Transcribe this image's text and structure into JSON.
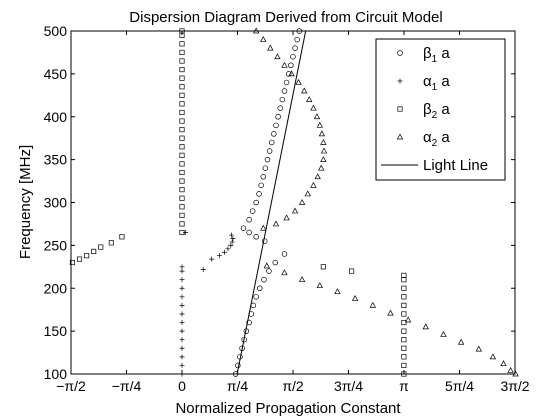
{
  "chart_data": {
    "type": "scatter",
    "title": "Dispersion Diagram Derived from Circuit Model",
    "xlabel": "Normalized Propagation Constant",
    "ylabel": "Frequency [MHz]",
    "xlim": [
      -1.5708,
      4.7124
    ],
    "ylim": [
      100,
      500
    ],
    "grid": false,
    "legend_position": "top-right",
    "x_ticks": [
      {
        "value": -1.5708,
        "label": "−π/2"
      },
      {
        "value": -0.7854,
        "label": "−π/4"
      },
      {
        "value": 0,
        "label": "0"
      },
      {
        "value": 0.7854,
        "label": "π/4"
      },
      {
        "value": 1.5708,
        "label": "π/2"
      },
      {
        "value": 2.3562,
        "label": "3π/4"
      },
      {
        "value": 3.1416,
        "label": "π"
      },
      {
        "value": 3.927,
        "label": "5π/4"
      },
      {
        "value": 4.7124,
        "label": "3π/2"
      }
    ],
    "y_ticks": [
      100,
      150,
      200,
      250,
      300,
      350,
      400,
      450,
      500
    ],
    "series": [
      {
        "name": "β1 a",
        "marker": "circle",
        "points": [
          [
            0.76,
            100
          ],
          [
            0.79,
            110
          ],
          [
            0.82,
            120
          ],
          [
            0.85,
            130
          ],
          [
            0.88,
            140
          ],
          [
            0.91,
            150
          ],
          [
            0.95,
            160
          ],
          [
            0.98,
            170
          ],
          [
            1.01,
            180
          ],
          [
            1.05,
            190
          ],
          [
            1.1,
            200
          ],
          [
            1.16,
            210
          ],
          [
            1.23,
            220
          ],
          [
            1.32,
            230
          ],
          [
            1.45,
            240
          ],
          [
            1.17,
            255
          ],
          [
            1.05,
            260
          ],
          [
            0.95,
            265
          ],
          [
            0.87,
            270
          ],
          [
            0.95,
            280
          ],
          [
            1.0,
            290
          ],
          [
            1.05,
            300
          ],
          [
            1.09,
            310
          ],
          [
            1.12,
            320
          ],
          [
            1.15,
            330
          ],
          [
            1.18,
            340
          ],
          [
            1.21,
            350
          ],
          [
            1.24,
            360
          ],
          [
            1.27,
            370
          ],
          [
            1.3,
            380
          ],
          [
            1.33,
            390
          ],
          [
            1.36,
            400
          ],
          [
            1.39,
            410
          ],
          [
            1.42,
            420
          ],
          [
            1.45,
            430
          ],
          [
            1.48,
            440
          ],
          [
            1.51,
            450
          ],
          [
            1.54,
            460
          ],
          [
            1.57,
            470
          ],
          [
            1.6,
            480
          ],
          [
            1.63,
            490
          ],
          [
            1.66,
            500
          ]
        ]
      },
      {
        "name": "α1 a",
        "marker": "plus",
        "points": [
          [
            0,
            100
          ],
          [
            0,
            110
          ],
          [
            0,
            120
          ],
          [
            0,
            130
          ],
          [
            0,
            140
          ],
          [
            0,
            150
          ],
          [
            0,
            160
          ],
          [
            0,
            170
          ],
          [
            0,
            180
          ],
          [
            0,
            190
          ],
          [
            0,
            200
          ],
          [
            0,
            210
          ],
          [
            0,
            220
          ],
          [
            0,
            225
          ],
          [
            0.3,
            222
          ],
          [
            0.42,
            234
          ],
          [
            0.53,
            238
          ],
          [
            0.6,
            242
          ],
          [
            0.65,
            246
          ],
          [
            0.69,
            250
          ],
          [
            0.71,
            254
          ],
          [
            0.72,
            258
          ],
          [
            0.7,
            262
          ],
          [
            0.05,
            265
          ]
        ]
      },
      {
        "name": "β2 a",
        "marker": "square",
        "points": [
          [
            -1.55,
            230
          ],
          [
            -1.45,
            234
          ],
          [
            -1.35,
            238
          ],
          [
            -1.25,
            243
          ],
          [
            -1.15,
            248
          ],
          [
            -1.0,
            253
          ],
          [
            -0.85,
            260
          ],
          [
            0,
            265
          ],
          [
            0,
            275
          ],
          [
            0,
            285
          ],
          [
            0,
            295
          ],
          [
            0,
            305
          ],
          [
            0,
            315
          ],
          [
            0,
            325
          ],
          [
            0,
            335
          ],
          [
            0,
            345
          ],
          [
            0,
            355
          ],
          [
            0,
            365
          ],
          [
            0,
            375
          ],
          [
            0,
            385
          ],
          [
            0,
            395
          ],
          [
            0,
            405
          ],
          [
            0,
            415
          ],
          [
            0,
            425
          ],
          [
            0,
            435
          ],
          [
            0,
            445
          ],
          [
            0,
            455
          ],
          [
            0,
            465
          ],
          [
            0,
            475
          ],
          [
            0,
            485
          ],
          [
            0,
            495
          ],
          [
            0,
            500
          ],
          [
            2.0,
            225
          ],
          [
            2.4,
            220
          ],
          [
            3.14,
            100
          ],
          [
            3.14,
            110
          ],
          [
            3.14,
            120
          ],
          [
            3.14,
            130
          ],
          [
            3.14,
            140
          ],
          [
            3.14,
            150
          ],
          [
            3.14,
            160
          ],
          [
            3.14,
            170
          ],
          [
            3.14,
            180
          ],
          [
            3.14,
            190
          ],
          [
            3.14,
            200
          ],
          [
            3.14,
            210
          ],
          [
            3.14,
            215
          ]
        ]
      },
      {
        "name": "α2 a",
        "marker": "triangle",
        "points": [
          [
            1.05,
            500
          ],
          [
            1.15,
            490
          ],
          [
            1.25,
            480
          ],
          [
            1.35,
            470
          ],
          [
            1.45,
            460
          ],
          [
            1.55,
            450
          ],
          [
            1.65,
            440
          ],
          [
            1.73,
            430
          ],
          [
            1.8,
            420
          ],
          [
            1.86,
            410
          ],
          [
            1.91,
            400
          ],
          [
            1.95,
            390
          ],
          [
            1.98,
            380
          ],
          [
            2.0,
            370
          ],
          [
            2.01,
            360
          ],
          [
            2.0,
            350
          ],
          [
            1.97,
            340
          ],
          [
            1.92,
            330
          ],
          [
            1.86,
            320
          ],
          [
            1.78,
            310
          ],
          [
            1.7,
            300
          ],
          [
            1.6,
            290
          ],
          [
            1.48,
            282
          ],
          [
            1.33,
            275
          ],
          [
            1.15,
            270
          ],
          [
            1.2,
            226
          ],
          [
            1.45,
            218
          ],
          [
            1.7,
            210
          ],
          [
            1.95,
            203
          ],
          [
            2.2,
            196
          ],
          [
            2.45,
            188
          ],
          [
            2.7,
            180
          ],
          [
            2.95,
            171
          ],
          [
            3.2,
            163
          ],
          [
            3.45,
            155
          ],
          [
            3.7,
            146
          ],
          [
            3.95,
            137
          ],
          [
            4.2,
            129
          ],
          [
            4.4,
            120
          ],
          [
            4.55,
            112
          ],
          [
            4.65,
            104
          ],
          [
            4.72,
            100
          ]
        ]
      },
      {
        "name": "Light Line",
        "marker": "line",
        "points": [
          [
            0.78,
            100
          ],
          [
            1.75,
            500
          ]
        ]
      }
    ],
    "legend": [
      {
        "marker": "circle",
        "label": "β",
        "sub": "1",
        "suffix": " a"
      },
      {
        "marker": "plus",
        "label": "α",
        "sub": "1",
        "suffix": " a"
      },
      {
        "marker": "square",
        "label": "β",
        "sub": "2",
        "suffix": " a"
      },
      {
        "marker": "triangle",
        "label": "α",
        "sub": "2",
        "suffix": " a"
      },
      {
        "marker": "line",
        "label": "Light Line",
        "sub": "",
        "suffix": ""
      }
    ]
  }
}
